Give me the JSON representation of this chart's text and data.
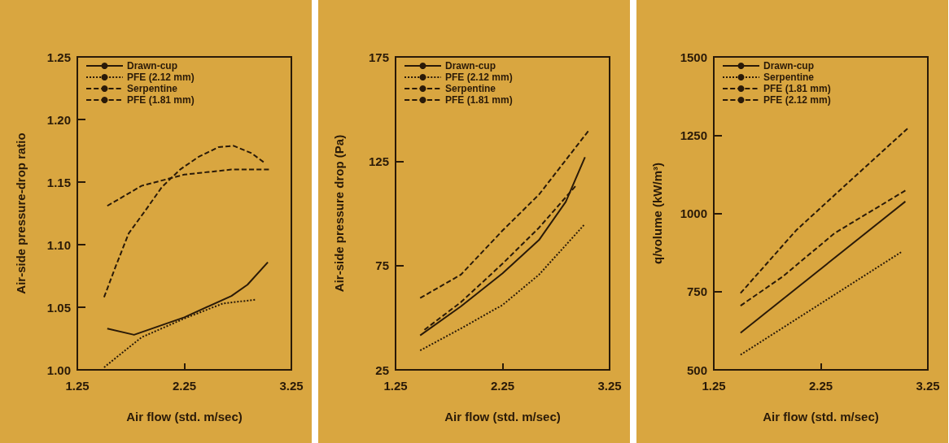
{
  "chart_data": [
    {
      "type": "line",
      "xlabel": "Air flow (std. m/sec)",
      "ylabel": "Air-side pressure-drop ratio",
      "xlim": [
        1.25,
        3.25
      ],
      "xticks": [
        1.25,
        2.25,
        3.25
      ],
      "ylim": [
        1.0,
        1.25
      ],
      "yticks": [
        {
          "value": 1.0,
          "label": "1.00"
        },
        1.05,
        {
          "value": 1.1,
          "label": "1.10"
        },
        1.15,
        {
          "value": 1.2,
          "label": "1.20"
        },
        1.25
      ],
      "grid": false,
      "legend": "top left",
      "marker": "none",
      "series": [
        {
          "name": "Drawn-cup",
          "color": "#2a1a08",
          "line_style": "solid",
          "x": [
            1.53,
            1.78,
            2.25,
            2.69,
            2.84,
            3.03
          ],
          "values": [
            1.033,
            1.028,
            1.042,
            1.059,
            1.068,
            1.086
          ]
        },
        {
          "name": "PFE (2.12 mm)",
          "color": "#2a1a08",
          "line_style": "dotted",
          "x": [
            1.5,
            1.85,
            2.25,
            2.61,
            2.91
          ],
          "values": [
            1.002,
            1.026,
            1.041,
            1.053,
            1.056
          ]
        },
        {
          "name": "Serpentine",
          "color": "#2a1a08",
          "line_style": "dashed",
          "x": [
            1.53,
            1.85,
            2.25,
            2.69,
            3.04
          ],
          "values": [
            1.131,
            1.147,
            1.156,
            1.16,
            1.16
          ]
        },
        {
          "name": "PFE (1.81 mm)",
          "color": "#2a1a08",
          "line_style": "dashed",
          "x": [
            1.5,
            1.61,
            1.73,
            1.9,
            2.04,
            2.21,
            2.38,
            2.57,
            2.71,
            2.88,
            2.99
          ],
          "values": [
            1.058,
            1.083,
            1.109,
            1.129,
            1.146,
            1.16,
            1.17,
            1.178,
            1.179,
            1.173,
            1.166
          ]
        }
      ]
    },
    {
      "type": "line",
      "xlabel": "Air flow (std. m/sec)",
      "ylabel": "Air-side pressure drop (Pa)",
      "xlim": [
        1.25,
        3.25
      ],
      "xticks": [
        1.25,
        2.25,
        3.25
      ],
      "ylim": [
        25,
        175
      ],
      "yticks": [
        25,
        75,
        125,
        175
      ],
      "grid": false,
      "legend": "top left",
      "marker": "none",
      "series": [
        {
          "name": "Drawn-cup",
          "color": "#2a1a08",
          "line_style": "solid",
          "x": [
            1.48,
            1.86,
            2.25,
            2.59,
            2.84,
            3.02
          ],
          "values": [
            41.5,
            55.4,
            71.3,
            87.2,
            105.5,
            126.9
          ]
        },
        {
          "name": "PFE (2.12 mm)",
          "color": "#2a1a08",
          "line_style": "dotted",
          "x": [
            1.48,
            1.86,
            2.25,
            2.59,
            3.01
          ],
          "values": [
            34.3,
            44.8,
            56.1,
            70.6,
            94.4
          ]
        },
        {
          "name": "Serpentine",
          "color": "#2a1a08",
          "line_style": "dashed",
          "x": [
            1.48,
            1.86,
            2.25,
            2.59,
            3.05
          ],
          "values": [
            59.4,
            70.6,
            91.8,
            109,
            139.4
          ]
        },
        {
          "name": "PFE (1.81 mm)",
          "color": "#2a1a08",
          "line_style": "dashed",
          "x": [
            1.52,
            1.86,
            2.25,
            2.59,
            2.93
          ],
          "values": [
            44.2,
            57.4,
            75.9,
            93.1,
            113
          ]
        }
      ]
    },
    {
      "type": "line",
      "xlabel": "Air flow (std. m/sec)",
      "ylabel": "q/volume (kW/m³)",
      "xlim": [
        1.25,
        3.25
      ],
      "xticks": [
        1.25,
        2.25,
        3.25
      ],
      "ylim": [
        500,
        1500
      ],
      "yticks": [
        500,
        750,
        1000,
        1250,
        1500
      ],
      "grid": false,
      "legend": "top left",
      "marker": "none",
      "series": [
        {
          "name": "Drawn-cup",
          "color": "#2a1a08",
          "line_style": "solid",
          "x": [
            1.5,
            3.04
          ],
          "values": [
            618,
            1038
          ]
        },
        {
          "name": "Serpentine",
          "color": "#2a1a08",
          "line_style": "dotted",
          "x": [
            1.5,
            3.0
          ],
          "values": [
            548,
            876
          ]
        },
        {
          "name": "PFE (1.81 mm)",
          "color": "#2a1a08",
          "line_style": "dashed",
          "x": [
            1.5,
            2.02,
            2.38,
            3.06
          ],
          "values": [
            745,
            946,
            1059,
            1271
          ]
        },
        {
          "name": "PFE (2.12 mm)",
          "color": "#2a1a08",
          "line_style": "dashed",
          "x": [
            1.5,
            1.89,
            2.38,
            3.04
          ],
          "values": [
            705,
            797,
            937,
            1073
          ]
        }
      ]
    }
  ]
}
